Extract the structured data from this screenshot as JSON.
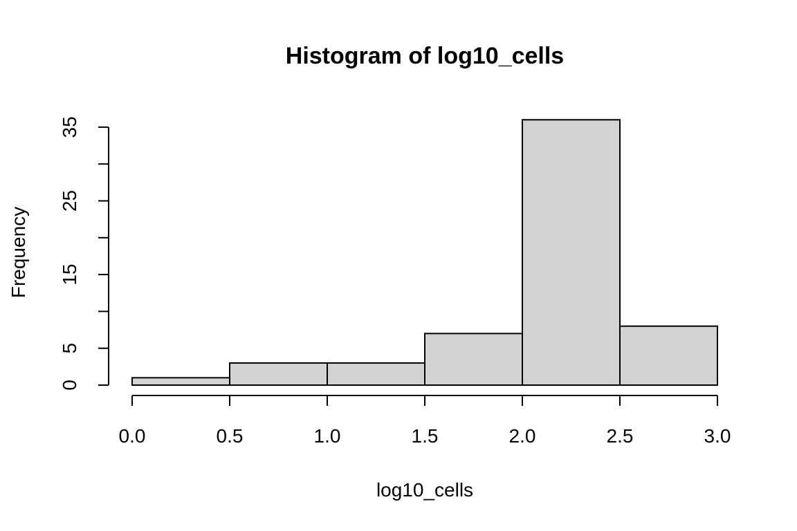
{
  "chart_data": {
    "type": "bar",
    "title": "Histogram of log10_cells",
    "xlabel": "log10_cells",
    "ylabel": "Frequency",
    "bins": [
      {
        "start": 0.0,
        "end": 0.5,
        "count": 1
      },
      {
        "start": 0.5,
        "end": 1.0,
        "count": 3
      },
      {
        "start": 1.0,
        "end": 1.5,
        "count": 3
      },
      {
        "start": 1.5,
        "end": 2.0,
        "count": 7
      },
      {
        "start": 2.0,
        "end": 2.5,
        "count": 36
      },
      {
        "start": 2.5,
        "end": 3.0,
        "count": 8
      }
    ],
    "xlim": [
      0,
      3
    ],
    "ylim": [
      0,
      36
    ],
    "x_ticks": [
      0.0,
      0.5,
      1.0,
      1.5,
      2.0,
      2.5,
      3.0
    ],
    "x_tick_labels": [
      "0.0",
      "0.5",
      "1.0",
      "1.5",
      "2.0",
      "2.5",
      "3.0"
    ],
    "y_ticks": [
      0,
      5,
      10,
      15,
      20,
      25,
      30,
      35
    ],
    "y_tick_labels": [
      "0",
      "5",
      "",
      "15",
      "",
      "25",
      "",
      "35"
    ],
    "grid": false,
    "legend": "none",
    "colors": {
      "bar_fill": "#d3d3d3",
      "bar_stroke": "#000000",
      "background": "#ffffff"
    }
  }
}
